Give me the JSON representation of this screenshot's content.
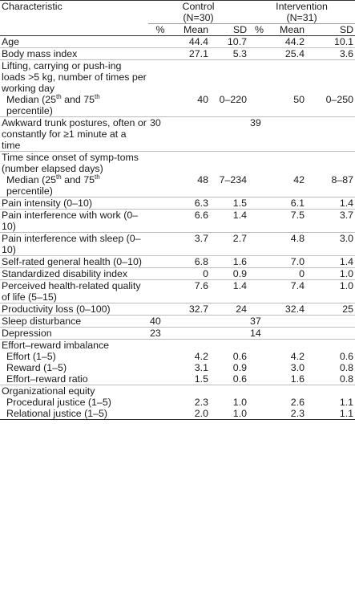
{
  "header": {
    "characteristic": "Characteristic",
    "control": "Control",
    "control_n": "(N=30)",
    "intervention": "Intervention",
    "intervention_n": "(N=31)",
    "pct": "%",
    "mean": "Mean",
    "sd": "SD"
  },
  "rows": [
    {
      "label": "Age",
      "c_pct": "",
      "c_mean": "44.4",
      "c_sd": "10.7",
      "i_pct": "",
      "i_mean": "44.2",
      "i_sd": "10.1"
    },
    {
      "label": "Body mass index",
      "c_pct": "",
      "c_mean": "27.1",
      "c_sd": "5.3",
      "i_pct": "",
      "i_mean": "25.4",
      "i_sd": "3.6"
    },
    {
      "label": "Lifting, carrying or push-ing loads >5 kg, number of times per working day"
    },
    {
      "label": "Median (25th and 75th percentile)",
      "sub": true,
      "c_pct": "",
      "c_mean": "40",
      "c_sd": "0–220",
      "i_pct": "",
      "i_mean": "50",
      "i_sd": "0–250"
    },
    {
      "label": "Awkward trunk postures, often or constantly for ≥1 minute at a time",
      "c_pct": "30",
      "i_pct": "39"
    },
    {
      "label": "Time since onset of symp-toms (number elapsed days)"
    },
    {
      "label": "Median (25th and 75th percentile)",
      "sub": true,
      "c_mean": "48",
      "c_sd": "7–234",
      "i_mean": "42",
      "i_sd": "8–87"
    },
    {
      "label": "Pain intensity (0–10)",
      "c_mean": "6.3",
      "c_sd": "1.5",
      "i_mean": "6.1",
      "i_sd": "1.4"
    },
    {
      "label": "Pain interference with work (0–10)",
      "c_mean": "6.6",
      "c_sd": "1.4",
      "i_mean": "7.5",
      "i_sd": "3.7"
    },
    {
      "label": "Pain interference with sleep (0–10)",
      "c_mean": "3.7",
      "c_sd": "2.7",
      "i_mean": "4.8",
      "i_sd": "3.0"
    },
    {
      "label": "Self-rated general health (0–10)",
      "c_mean": "6.8",
      "c_sd": "1.6",
      "i_mean": "7.0",
      "i_sd": "1.4"
    },
    {
      "label": "Standardized disability index",
      "c_mean": "0",
      "c_sd": "0.9",
      "i_mean": "0",
      "i_sd": "1.0"
    },
    {
      "label": "Perceived health-related quality of life (5–15)",
      "c_mean": "7.6",
      "c_sd": "1.4",
      "i_mean": "7.4",
      "i_sd": "1.0"
    },
    {
      "label": "Productivity loss (0–100)",
      "c_mean": "32.7",
      "c_sd": "24",
      "i_mean": "32.4",
      "i_sd": "25"
    },
    {
      "label": "Sleep disturbance",
      "c_pct": "40",
      "i_pct": "37"
    },
    {
      "label": "Depression",
      "c_pct": "23",
      "i_pct": "14"
    },
    {
      "label": "Effort–reward imbalance"
    },
    {
      "label": "Effort (1–5)",
      "sub": true,
      "c_mean": "4.2",
      "c_sd": "0.6",
      "i_mean": "4.2",
      "i_sd": "0.6"
    },
    {
      "label": "Reward (1–5)",
      "sub": true,
      "c_mean": "3.1",
      "c_sd": "0.9",
      "i_mean": "3.0",
      "i_sd": "0.8"
    },
    {
      "label": "Effort–reward ratio",
      "sub": true,
      "c_mean": "1.5",
      "c_sd": "0.6",
      "i_mean": "1.6",
      "i_sd": "0.8"
    },
    {
      "label": "Organizational equity"
    },
    {
      "label": "Procedural justice (1–5)",
      "sub": true,
      "c_mean": "2.3",
      "c_sd": "1.0",
      "i_mean": "2.6",
      "i_sd": "1.1"
    },
    {
      "label": "Relational justice (1–5)",
      "sub": true,
      "c_mean": "2.0",
      "c_sd": "1.0",
      "i_mean": "2.3",
      "i_sd": "1.1"
    }
  ]
}
